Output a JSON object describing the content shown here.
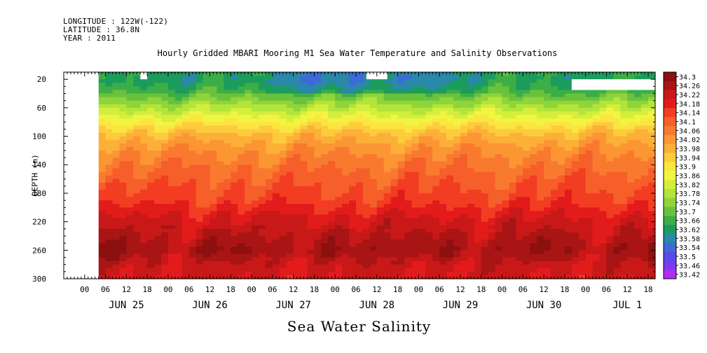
{
  "header": {
    "longitude": "LONGITUDE : 122W(-122)",
    "latitude": "LATITUDE : 36.8N",
    "year": "YEAR : 2011"
  },
  "chart_data": {
    "type": "heatmap",
    "title": "Hourly Gridded MBARI Mooring M1 Sea Water Temperature and Salinity Observations",
    "xlabel": "Sea Water Salinity",
    "ylabel": "DEPTH (m)",
    "y_ticks": [
      20,
      60,
      100,
      140,
      180,
      220,
      260,
      300
    ],
    "ylim": [
      300,
      10
    ],
    "x_hour_ticks": [
      "00",
      "06",
      "12",
      "18",
      "00",
      "06",
      "12",
      "18",
      "00",
      "06",
      "12",
      "18",
      "00",
      "06",
      "12",
      "18",
      "00",
      "06",
      "12",
      "18",
      "00",
      "06",
      "12",
      "18",
      "00",
      "06",
      "12",
      "18"
    ],
    "x_day_labels": [
      "JUN 25",
      "JUN 26",
      "JUN 27",
      "JUN 28",
      "JUN 29",
      "JUN 30",
      "JUL  1"
    ],
    "xlim_hours": [
      -6,
      164
    ],
    "data_start_hour": 4,
    "colorbar_levels": [
      "34.3",
      "34.26",
      "34.22",
      "34.18",
      "34.14",
      "34.1",
      "34.06",
      "34.02",
      "33.98",
      "33.94",
      "33.9",
      "33.86",
      "33.82",
      "33.78",
      "33.74",
      "33.7",
      "33.66",
      "33.62",
      "33.58",
      "33.54",
      "33.5",
      "33.46",
      "33.42"
    ],
    "colorbar_colors": [
      "#8c1010",
      "#a91414",
      "#c81818",
      "#e21b1b",
      "#f23d22",
      "#f65e2a",
      "#f97a2f",
      "#fb9633",
      "#fdb038",
      "#fdcc3c",
      "#fbe640",
      "#f2f442",
      "#d4ee3c",
      "#b2e43a",
      "#8ed43a",
      "#6ac23c",
      "#3cae48",
      "#1c9c5c",
      "#2a88a8",
      "#3c6ad8",
      "#5a4ae8",
      "#7a3aee",
      "#b22cf2"
    ],
    "salinity_profile": [
      {
        "depth": 10,
        "value": 33.64
      },
      {
        "depth": 20,
        "value": 33.62
      },
      {
        "depth": 35,
        "value": 33.66
      },
      {
        "depth": 55,
        "value": 33.76
      },
      {
        "depth": 75,
        "value": 33.86
      },
      {
        "depth": 95,
        "value": 33.96
      },
      {
        "depth": 115,
        "value": 34.02
      },
      {
        "depth": 135,
        "value": 34.06
      },
      {
        "depth": 160,
        "value": 34.1
      },
      {
        "depth": 190,
        "value": 34.14
      },
      {
        "depth": 215,
        "value": 34.2
      },
      {
        "depth": 240,
        "value": 34.24
      },
      {
        "depth": 260,
        "value": 34.27
      },
      {
        "depth": 280,
        "value": 34.22
      },
      {
        "depth": 300,
        "value": 34.2
      }
    ]
  }
}
